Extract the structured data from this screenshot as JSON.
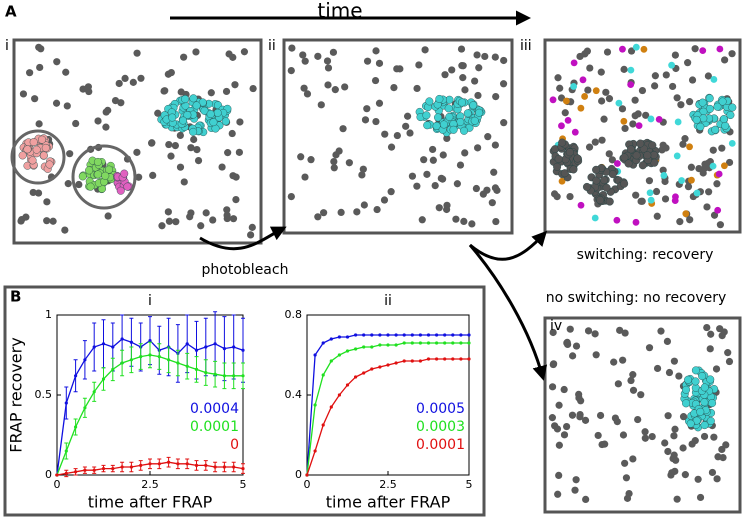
{
  "figure": {
    "panel_a": "A",
    "panel_b": "B",
    "time": "time",
    "snapshots": [
      "i",
      "ii",
      "iii",
      "iv"
    ],
    "photobleach": "photobleach",
    "recovery": "switching: recovery",
    "no_recovery": "no switching: no recovery"
  },
  "chart_data": [
    {
      "type": "line",
      "title": "i",
      "x_label": "time after FRAP",
      "y_label": "FRAP recovery",
      "x": [
        0,
        0.25,
        0.5,
        0.75,
        1,
        1.25,
        1.5,
        1.75,
        2,
        2.25,
        2.5,
        2.75,
        3,
        3.25,
        3.5,
        3.75,
        4,
        4.25,
        4.5,
        4.75,
        5
      ],
      "xlim": [
        0,
        5
      ],
      "xticks": [
        0,
        2.5,
        5
      ],
      "ylim": [
        0,
        1
      ],
      "yticks": [
        0,
        0.5,
        1
      ],
      "legend": "lower right",
      "series": [
        {
          "name": "0.0004",
          "color": "#1010e0",
          "values": [
            0,
            0.45,
            0.62,
            0.72,
            0.8,
            0.82,
            0.8,
            0.85,
            0.83,
            0.8,
            0.84,
            0.78,
            0.8,
            0.76,
            0.82,
            0.78,
            0.8,
            0.82,
            0.79,
            0.8,
            0.78
          ],
          "errors": [
            0,
            0.1,
            0.1,
            0.12,
            0.15,
            0.15,
            0.15,
            0.15,
            0.15,
            0.15,
            0.15,
            0.15,
            0.18,
            0.18,
            0.18,
            0.18,
            0.18,
            0.2,
            0.2,
            0.2,
            0.2
          ]
        },
        {
          "name": "0.0001",
          "color": "#20e020",
          "values": [
            0,
            0.15,
            0.3,
            0.42,
            0.52,
            0.6,
            0.66,
            0.7,
            0.72,
            0.74,
            0.75,
            0.74,
            0.72,
            0.7,
            0.68,
            0.66,
            0.64,
            0.63,
            0.62,
            0.62,
            0.62
          ],
          "errors": [
            0,
            0.05,
            0.05,
            0.06,
            0.06,
            0.07,
            0.07,
            0.08,
            0.08,
            0.08,
            0.08,
            0.08,
            0.08,
            0.08,
            0.08,
            0.08,
            0.08,
            0.08,
            0.08,
            0.08,
            0.08
          ]
        },
        {
          "name": "0",
          "color": "#e01010",
          "values": [
            0,
            0.01,
            0.02,
            0.03,
            0.03,
            0.04,
            0.04,
            0.05,
            0.05,
            0.06,
            0.07,
            0.07,
            0.08,
            0.07,
            0.07,
            0.06,
            0.06,
            0.05,
            0.05,
            0.05,
            0.04
          ],
          "errors": [
            0,
            0.02,
            0.02,
            0.02,
            0.02,
            0.02,
            0.02,
            0.03,
            0.03,
            0.03,
            0.03,
            0.03,
            0.03,
            0.03,
            0.03,
            0.03,
            0.03,
            0.03,
            0.03,
            0.03,
            0.03
          ]
        }
      ]
    },
    {
      "type": "line",
      "title": "ii",
      "x_label": "time after FRAP",
      "x": [
        0,
        0.25,
        0.5,
        0.75,
        1,
        1.25,
        1.5,
        1.75,
        2,
        2.25,
        2.5,
        2.75,
        3,
        3.25,
        3.5,
        3.75,
        4,
        4.25,
        4.5,
        4.75,
        5
      ],
      "xlim": [
        0,
        5
      ],
      "xticks": [
        0,
        2.5,
        5
      ],
      "ylim": [
        0,
        0.8
      ],
      "yticks": [
        0,
        0.4,
        0.8
      ],
      "legend": "lower right",
      "series": [
        {
          "name": "0.0005",
          "color": "#1010e0",
          "values": [
            0,
            0.6,
            0.66,
            0.68,
            0.69,
            0.69,
            0.7,
            0.7,
            0.7,
            0.7,
            0.7,
            0.7,
            0.7,
            0.7,
            0.7,
            0.7,
            0.7,
            0.7,
            0.7,
            0.7,
            0.7
          ]
        },
        {
          "name": "0.0003",
          "color": "#20e020",
          "values": [
            0,
            0.35,
            0.5,
            0.57,
            0.6,
            0.62,
            0.63,
            0.64,
            0.64,
            0.65,
            0.65,
            0.65,
            0.66,
            0.66,
            0.66,
            0.66,
            0.66,
            0.66,
            0.66,
            0.66,
            0.66
          ]
        },
        {
          "name": "0.0001",
          "color": "#e01010",
          "values": [
            0,
            0.12,
            0.25,
            0.34,
            0.4,
            0.45,
            0.49,
            0.51,
            0.53,
            0.54,
            0.55,
            0.56,
            0.57,
            0.57,
            0.57,
            0.58,
            0.58,
            0.58,
            0.58,
            0.58,
            0.58
          ]
        }
      ]
    }
  ]
}
